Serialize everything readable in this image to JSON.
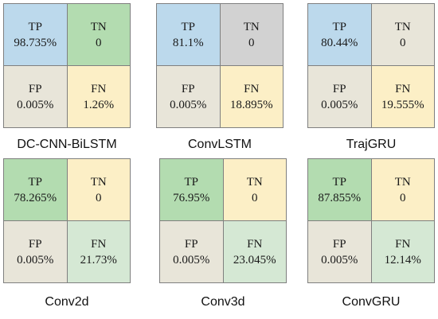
{
  "colors": {
    "blue": "#bcd9ec",
    "green": "#b3dcb0",
    "gray": "#d2d2d2",
    "beige": "#e8e5d9",
    "yellow": "#fcefc6",
    "lightgreen": "#d5e8d4"
  },
  "chart_data": [
    {
      "type": "table",
      "model": "DC-CNN-BiLSTM",
      "cells": [
        {
          "label": "TP",
          "value": "98.735%",
          "color": "blue"
        },
        {
          "label": "TN",
          "value": "0",
          "color": "green"
        },
        {
          "label": "FP",
          "value": "0.005%",
          "color": "beige"
        },
        {
          "label": "FN",
          "value": "1.26%",
          "color": "yellow"
        }
      ]
    },
    {
      "type": "table",
      "model": "ConvLSTM",
      "cells": [
        {
          "label": "TP",
          "value": "81.1%",
          "color": "blue"
        },
        {
          "label": "TN",
          "value": "0",
          "color": "gray"
        },
        {
          "label": "FP",
          "value": "0.005%",
          "color": "beige"
        },
        {
          "label": "FN",
          "value": "18.895%",
          "color": "yellow"
        }
      ]
    },
    {
      "type": "table",
      "model": "TrajGRU",
      "cells": [
        {
          "label": "TP",
          "value": "80.44%",
          "color": "blue"
        },
        {
          "label": "TN",
          "value": "0",
          "color": "beige"
        },
        {
          "label": "FP",
          "value": "0.005%",
          "color": "beige"
        },
        {
          "label": "FN",
          "value": "19.555%",
          "color": "yellow"
        }
      ]
    },
    {
      "type": "table",
      "model": "Conv2d",
      "cells": [
        {
          "label": "TP",
          "value": "78.265%",
          "color": "green"
        },
        {
          "label": "TN",
          "value": "0",
          "color": "yellow"
        },
        {
          "label": "FP",
          "value": "0.005%",
          "color": "beige"
        },
        {
          "label": "FN",
          "value": "21.73%",
          "color": "lightgreen"
        }
      ]
    },
    {
      "type": "table",
      "model": "Conv3d",
      "cells": [
        {
          "label": "TP",
          "value": "76.95%",
          "color": "green"
        },
        {
          "label": "TN",
          "value": "0",
          "color": "yellow"
        },
        {
          "label": "FP",
          "value": "0.005%",
          "color": "beige"
        },
        {
          "label": "FN",
          "value": "23.045%",
          "color": "lightgreen"
        }
      ]
    },
    {
      "type": "table",
      "model": "ConvGRU",
      "cells": [
        {
          "label": "TP",
          "value": "87.855%",
          "color": "green"
        },
        {
          "label": "TN",
          "value": "0",
          "color": "yellow"
        },
        {
          "label": "FP",
          "value": "0.005%",
          "color": "beige"
        },
        {
          "label": "FN",
          "value": "12.14%",
          "color": "lightgreen"
        }
      ]
    }
  ]
}
